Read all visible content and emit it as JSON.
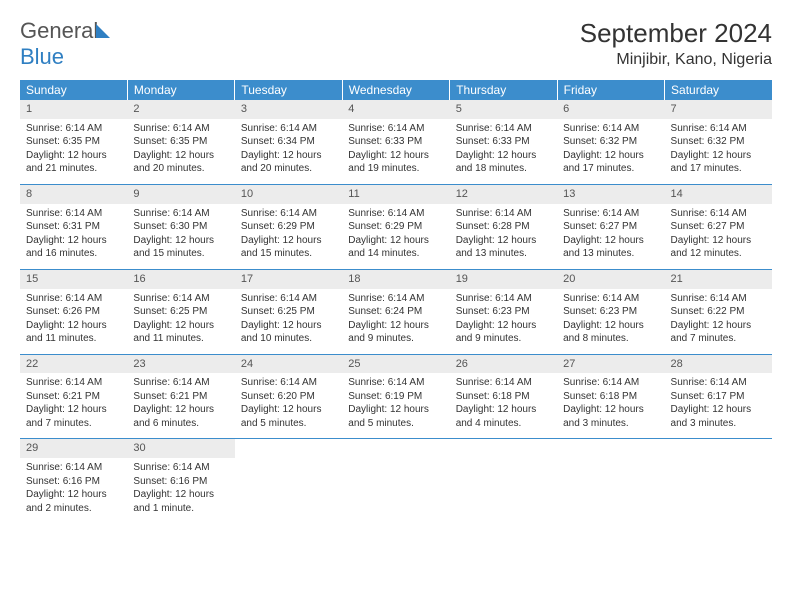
{
  "brand": {
    "name1": "General",
    "name2": "Blue"
  },
  "title": "September 2024",
  "location": "Minjibir, Kano, Nigeria",
  "colors": {
    "header_bg": "#3c8dcc",
    "header_text": "#ffffff",
    "daynum_bg": "#ececec",
    "text": "#333333",
    "rule": "#3c8dcc"
  },
  "weekdays": [
    "Sunday",
    "Monday",
    "Tuesday",
    "Wednesday",
    "Thursday",
    "Friday",
    "Saturday"
  ],
  "days": [
    {
      "n": "1",
      "sunrise": "Sunrise: 6:14 AM",
      "sunset": "Sunset: 6:35 PM",
      "day": "Daylight: 12 hours and 21 minutes."
    },
    {
      "n": "2",
      "sunrise": "Sunrise: 6:14 AM",
      "sunset": "Sunset: 6:35 PM",
      "day": "Daylight: 12 hours and 20 minutes."
    },
    {
      "n": "3",
      "sunrise": "Sunrise: 6:14 AM",
      "sunset": "Sunset: 6:34 PM",
      "day": "Daylight: 12 hours and 20 minutes."
    },
    {
      "n": "4",
      "sunrise": "Sunrise: 6:14 AM",
      "sunset": "Sunset: 6:33 PM",
      "day": "Daylight: 12 hours and 19 minutes."
    },
    {
      "n": "5",
      "sunrise": "Sunrise: 6:14 AM",
      "sunset": "Sunset: 6:33 PM",
      "day": "Daylight: 12 hours and 18 minutes."
    },
    {
      "n": "6",
      "sunrise": "Sunrise: 6:14 AM",
      "sunset": "Sunset: 6:32 PM",
      "day": "Daylight: 12 hours and 17 minutes."
    },
    {
      "n": "7",
      "sunrise": "Sunrise: 6:14 AM",
      "sunset": "Sunset: 6:32 PM",
      "day": "Daylight: 12 hours and 17 minutes."
    },
    {
      "n": "8",
      "sunrise": "Sunrise: 6:14 AM",
      "sunset": "Sunset: 6:31 PM",
      "day": "Daylight: 12 hours and 16 minutes."
    },
    {
      "n": "9",
      "sunrise": "Sunrise: 6:14 AM",
      "sunset": "Sunset: 6:30 PM",
      "day": "Daylight: 12 hours and 15 minutes."
    },
    {
      "n": "10",
      "sunrise": "Sunrise: 6:14 AM",
      "sunset": "Sunset: 6:29 PM",
      "day": "Daylight: 12 hours and 15 minutes."
    },
    {
      "n": "11",
      "sunrise": "Sunrise: 6:14 AM",
      "sunset": "Sunset: 6:29 PM",
      "day": "Daylight: 12 hours and 14 minutes."
    },
    {
      "n": "12",
      "sunrise": "Sunrise: 6:14 AM",
      "sunset": "Sunset: 6:28 PM",
      "day": "Daylight: 12 hours and 13 minutes."
    },
    {
      "n": "13",
      "sunrise": "Sunrise: 6:14 AM",
      "sunset": "Sunset: 6:27 PM",
      "day": "Daylight: 12 hours and 13 minutes."
    },
    {
      "n": "14",
      "sunrise": "Sunrise: 6:14 AM",
      "sunset": "Sunset: 6:27 PM",
      "day": "Daylight: 12 hours and 12 minutes."
    },
    {
      "n": "15",
      "sunrise": "Sunrise: 6:14 AM",
      "sunset": "Sunset: 6:26 PM",
      "day": "Daylight: 12 hours and 11 minutes."
    },
    {
      "n": "16",
      "sunrise": "Sunrise: 6:14 AM",
      "sunset": "Sunset: 6:25 PM",
      "day": "Daylight: 12 hours and 11 minutes."
    },
    {
      "n": "17",
      "sunrise": "Sunrise: 6:14 AM",
      "sunset": "Sunset: 6:25 PM",
      "day": "Daylight: 12 hours and 10 minutes."
    },
    {
      "n": "18",
      "sunrise": "Sunrise: 6:14 AM",
      "sunset": "Sunset: 6:24 PM",
      "day": "Daylight: 12 hours and 9 minutes."
    },
    {
      "n": "19",
      "sunrise": "Sunrise: 6:14 AM",
      "sunset": "Sunset: 6:23 PM",
      "day": "Daylight: 12 hours and 9 minutes."
    },
    {
      "n": "20",
      "sunrise": "Sunrise: 6:14 AM",
      "sunset": "Sunset: 6:23 PM",
      "day": "Daylight: 12 hours and 8 minutes."
    },
    {
      "n": "21",
      "sunrise": "Sunrise: 6:14 AM",
      "sunset": "Sunset: 6:22 PM",
      "day": "Daylight: 12 hours and 7 minutes."
    },
    {
      "n": "22",
      "sunrise": "Sunrise: 6:14 AM",
      "sunset": "Sunset: 6:21 PM",
      "day": "Daylight: 12 hours and 7 minutes."
    },
    {
      "n": "23",
      "sunrise": "Sunrise: 6:14 AM",
      "sunset": "Sunset: 6:21 PM",
      "day": "Daylight: 12 hours and 6 minutes."
    },
    {
      "n": "24",
      "sunrise": "Sunrise: 6:14 AM",
      "sunset": "Sunset: 6:20 PM",
      "day": "Daylight: 12 hours and 5 minutes."
    },
    {
      "n": "25",
      "sunrise": "Sunrise: 6:14 AM",
      "sunset": "Sunset: 6:19 PM",
      "day": "Daylight: 12 hours and 5 minutes."
    },
    {
      "n": "26",
      "sunrise": "Sunrise: 6:14 AM",
      "sunset": "Sunset: 6:18 PM",
      "day": "Daylight: 12 hours and 4 minutes."
    },
    {
      "n": "27",
      "sunrise": "Sunrise: 6:14 AM",
      "sunset": "Sunset: 6:18 PM",
      "day": "Daylight: 12 hours and 3 minutes."
    },
    {
      "n": "28",
      "sunrise": "Sunrise: 6:14 AM",
      "sunset": "Sunset: 6:17 PM",
      "day": "Daylight: 12 hours and 3 minutes."
    },
    {
      "n": "29",
      "sunrise": "Sunrise: 6:14 AM",
      "sunset": "Sunset: 6:16 PM",
      "day": "Daylight: 12 hours and 2 minutes."
    },
    {
      "n": "30",
      "sunrise": "Sunrise: 6:14 AM",
      "sunset": "Sunset: 6:16 PM",
      "day": "Daylight: 12 hours and 1 minute."
    }
  ]
}
